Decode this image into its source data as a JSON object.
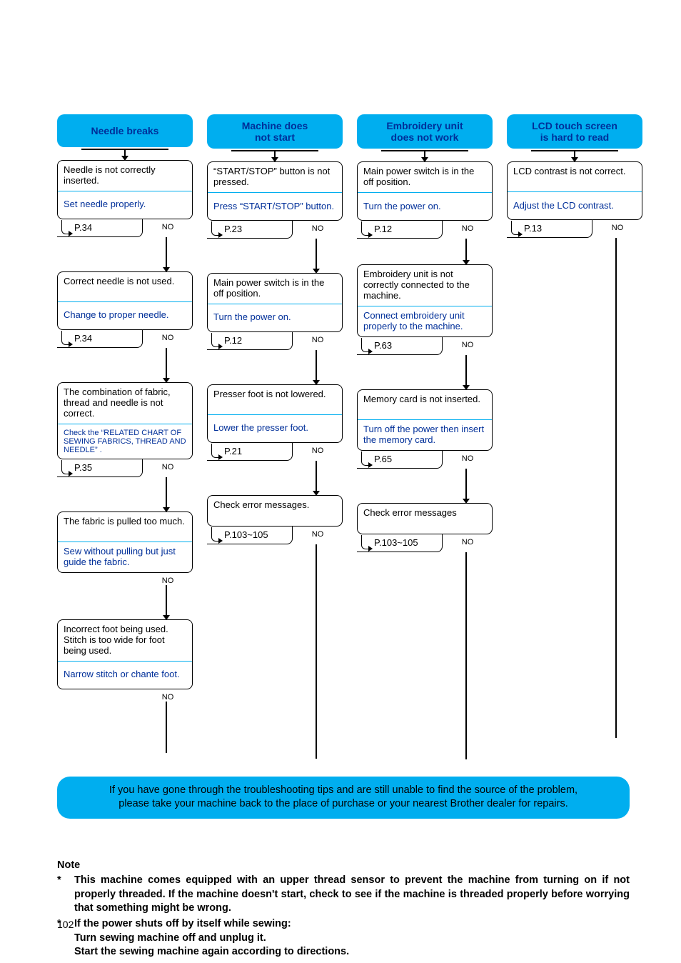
{
  "colors": {
    "accent": "#00aeef",
    "header_text": "#002F99",
    "solution_text": "#002F99",
    "border": "#000000",
    "background": "#ffffff"
  },
  "columns": [
    {
      "header": "Needle breaks",
      "steps": [
        {
          "cause": "Needle is not correctly inserted.",
          "solution": "Set needle properly.",
          "ref": "P.34",
          "no": "NO"
        },
        {
          "cause": "Correct needle is not used.",
          "solution": "Change to proper needle.",
          "ref": "P.34",
          "no": "NO"
        },
        {
          "cause": "The combination of fabric, thread and needle is not correct.",
          "solution": "Check the “RELATED CHART OF SEWING FABRICS, THREAD AND NEEDLE” .",
          "ref": "P.35",
          "no": "NO",
          "smallSolution": true,
          "tall": true
        },
        {
          "cause": "The fabric is pulled too much.",
          "solution": "Sew without pulling but just guide the fabric.",
          "no": "NO",
          "noRef": true
        },
        {
          "cause": "Incorrect foot being used. Stitch is too wide for foot being used.",
          "solution": "Narrow stitch or chante foot.",
          "no": "NO",
          "noRef": true,
          "tall": true
        }
      ]
    },
    {
      "header": "Machine does\nnot start",
      "steps": [
        {
          "cause": "“START/STOP” button is not pressed.",
          "solution": "Press “START/STOP” button.",
          "ref": "P.23",
          "no": "NO"
        },
        {
          "cause": "Main power switch is in the off position.",
          "solution": "Turn the power on.",
          "ref": "P.12",
          "no": "NO"
        },
        {
          "cause": "Presser foot is not lowered.",
          "solution": "Lower the presser foot.",
          "ref": "P.21",
          "no": "NO"
        },
        {
          "cause": "Check error messages.",
          "ref": "P.103~105",
          "no": "NO",
          "single": true
        }
      ]
    },
    {
      "header": "Embroidery unit\ndoes not work",
      "steps": [
        {
          "cause": "Main power switch is in the off position.",
          "solution": "Turn the power on.",
          "ref": "P.12",
          "no": "NO"
        },
        {
          "cause": "Embroidery unit is not correctly connected to the machine.",
          "solution": "Connect embroidery unit properly to the machine.",
          "ref": "P.63",
          "no": "NO",
          "tall": true
        },
        {
          "cause": "Memory card is not inserted.",
          "solution": "Turn off the power then insert the memory card.",
          "ref": "P.65",
          "no": "NO"
        },
        {
          "cause": "Check error messages",
          "ref": "P.103~105",
          "no": "NO",
          "single": true
        }
      ]
    },
    {
      "header": "LCD touch screen\nis hard to read",
      "steps": [
        {
          "cause": "LCD contrast is not correct.",
          "solution": "Adjust the LCD contrast.",
          "ref": "P.13",
          "no": "NO"
        }
      ]
    }
  ],
  "footer": {
    "line1": "If you have gone through the troubleshooting tips and are still unable to find the source of the problem,",
    "line2": "please take your machine back to the place of purchase or your nearest Brother dealer for repairs."
  },
  "note": {
    "title": "Note",
    "items": [
      "This machine comes equipped with an upper thread sensor to prevent the machine from turning on if not properly threaded.  If the machine doesn't start, check to see if the machine is threaded properly before worrying that something might be wrong.",
      "If the power shuts off by itself while sewing:\nTurn sewing machine off and unplug it.\nStart the sewing machine again according to directions."
    ]
  },
  "page_number": "102"
}
